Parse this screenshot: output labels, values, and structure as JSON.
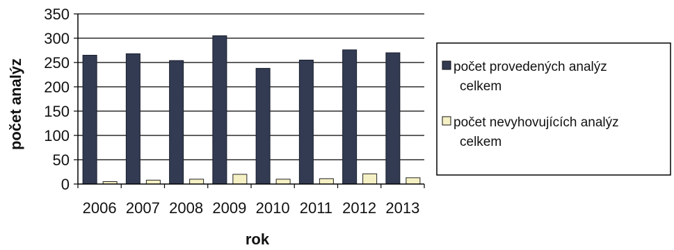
{
  "chart_data": {
    "type": "bar",
    "title": "",
    "xlabel": "rok",
    "ylabel": "počet analýz",
    "categories": [
      "2006",
      "2007",
      "2008",
      "2009",
      "2010",
      "2011",
      "2012",
      "2013"
    ],
    "series": [
      {
        "name": "počet provedených analýz celkem",
        "values": [
          265,
          268,
          254,
          305,
          238,
          255,
          276,
          270
        ],
        "color": "#323b52",
        "legend_lines": [
          "počet provedených analýz",
          "celkem"
        ]
      },
      {
        "name": "počet nevyhovujících analýz celkem",
        "values": [
          5,
          8,
          10,
          20,
          10,
          11,
          21,
          13
        ],
        "color": "#f5f0c4",
        "legend_lines": [
          "počet nevyhovujících analýz",
          "celkem"
        ]
      }
    ],
    "ylim": [
      0,
      350
    ],
    "yticks": [
      0,
      50,
      100,
      150,
      200,
      250,
      300,
      350
    ],
    "grid": true,
    "legend_position": "right"
  }
}
